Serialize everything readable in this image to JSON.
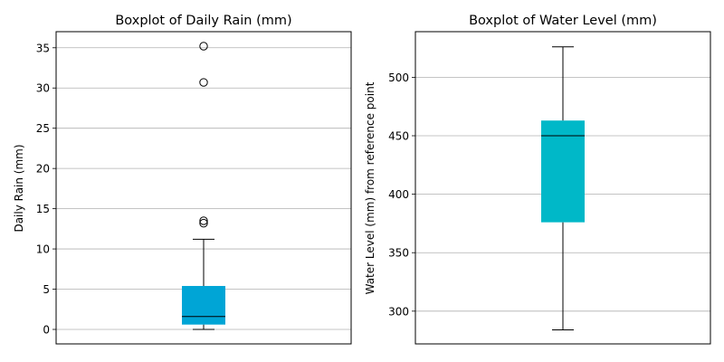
{
  "chart_data": [
    {
      "type": "boxplot",
      "title": "Boxplot of Daily Rain (mm)",
      "xlabel": "",
      "ylabel": "Daily Rain (mm)",
      "ylim": [
        -1.8,
        37
      ],
      "yticks": [
        0,
        5,
        10,
        15,
        20,
        25,
        30,
        35
      ],
      "grid": "y",
      "box": {
        "whisker_low": 0.0,
        "q1": 0.6,
        "median": 1.6,
        "q3": 5.4,
        "whisker_high": 11.2,
        "outliers": [
          13.2,
          13.5,
          30.7,
          35.2
        ],
        "color": "#00a5d6"
      }
    },
    {
      "type": "boxplot",
      "title": "Boxplot of Water Level (mm)",
      "xlabel": "",
      "ylabel": "Water Level (mm) from reference point",
      "ylim": [
        272,
        539
      ],
      "yticks": [
        300,
        350,
        400,
        450,
        500
      ],
      "grid": "y",
      "box": {
        "whisker_low": 284,
        "q1": 376,
        "median": 450,
        "q3": 463,
        "whisker_high": 526,
        "outliers": [],
        "color": "#00b8c8"
      }
    }
  ]
}
